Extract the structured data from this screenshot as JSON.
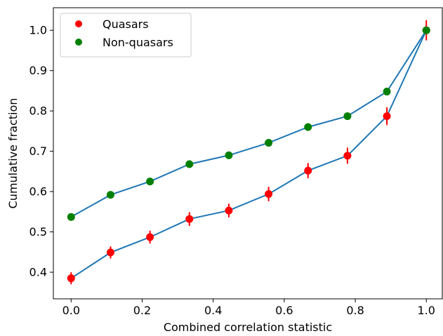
{
  "chart_data": {
    "type": "scatter",
    "title": "",
    "xlabel": "Combined correlation statistic",
    "ylabel": "Cumulative fraction",
    "xlim": [
      -0.05,
      1.045
    ],
    "ylim": [
      0.334,
      1.056
    ],
    "xticks": [
      0.0,
      0.2,
      0.4,
      0.6,
      0.8,
      1.0
    ],
    "xtick_labels": [
      "0.0",
      "0.2",
      "0.4",
      "0.6",
      "0.8",
      "1.0"
    ],
    "yticks": [
      0.4,
      0.5,
      0.6,
      0.7,
      0.8,
      0.9,
      1.0
    ],
    "ytick_labels": [
      "0.4",
      "0.5",
      "0.6",
      "0.7",
      "0.8",
      "0.9",
      "1.0"
    ],
    "grid": false,
    "legend_position": "top-left",
    "line_color": "#1f77b4",
    "series": [
      {
        "name": "Quasars",
        "color": "#ff0000",
        "x": [
          0.0,
          0.111,
          0.222,
          0.333,
          0.444,
          0.556,
          0.667,
          0.778,
          0.889,
          1.0
        ],
        "y": [
          0.385,
          0.449,
          0.487,
          0.532,
          0.553,
          0.594,
          0.652,
          0.689,
          0.787,
          1.0
        ],
        "err": [
          0.015,
          0.015,
          0.016,
          0.017,
          0.017,
          0.018,
          0.019,
          0.02,
          0.022,
          0.025
        ]
      },
      {
        "name": "Non-quasars",
        "color": "#008000",
        "x": [
          0.0,
          0.111,
          0.222,
          0.333,
          0.444,
          0.556,
          0.667,
          0.778,
          0.889,
          1.0
        ],
        "y": [
          0.537,
          0.592,
          0.625,
          0.668,
          0.69,
          0.721,
          0.76,
          0.787,
          0.848,
          1.0
        ],
        "err": [
          0.005,
          0.005,
          0.005,
          0.005,
          0.005,
          0.005,
          0.005,
          0.005,
          0.005,
          0.005
        ]
      }
    ]
  }
}
